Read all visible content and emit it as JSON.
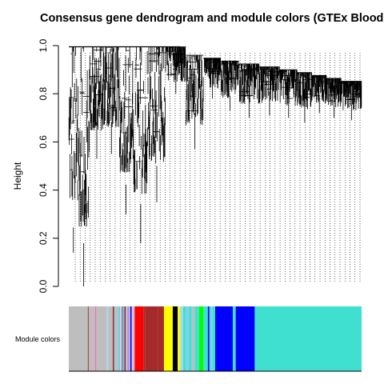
{
  "chart_data": {
    "type": "dendrogram",
    "title": "Consensus gene dendrogram and module colors (GTEx Blood",
    "ylabel": "Height",
    "ylim": [
      0.0,
      1.0
    ],
    "yticks": [
      "0.0",
      "0.2",
      "0.4",
      "0.6",
      "0.8",
      "1.0"
    ],
    "color_bar_label": "Module colors",
    "branches": [
      {
        "from": 0.0,
        "to": 0.03,
        "min_height": 0.14
      },
      {
        "from": 0.03,
        "to": 0.07,
        "min_height": 0.0
      },
      {
        "from": 0.07,
        "to": 0.12,
        "min_height": 0.53
      },
      {
        "from": 0.12,
        "to": 0.17,
        "min_height": 0.55
      },
      {
        "from": 0.17,
        "to": 0.22,
        "min_height": 0.3
      },
      {
        "from": 0.22,
        "to": 0.27,
        "min_height": 0.18
      },
      {
        "from": 0.27,
        "to": 0.33,
        "min_height": 0.35
      },
      {
        "from": 0.33,
        "to": 0.4,
        "min_height": 0.8
      },
      {
        "from": 0.4,
        "to": 0.46,
        "min_height": 0.57
      },
      {
        "from": 0.46,
        "to": 0.52,
        "min_height": 0.78
      },
      {
        "from": 0.52,
        "to": 0.58,
        "min_height": 0.73
      },
      {
        "from": 0.58,
        "to": 0.65,
        "min_height": 0.7
      },
      {
        "from": 0.65,
        "to": 0.72,
        "min_height": 0.71
      },
      {
        "from": 0.72,
        "to": 0.78,
        "min_height": 0.7
      },
      {
        "from": 0.78,
        "to": 0.83,
        "min_height": 0.68
      },
      {
        "from": 0.83,
        "to": 0.88,
        "min_height": 0.72
      },
      {
        "from": 0.88,
        "to": 0.93,
        "min_height": 0.7
      },
      {
        "from": 0.93,
        "to": 1.0,
        "min_height": 0.69
      }
    ],
    "module_colors": [
      {
        "from": 0.0,
        "to": 0.065,
        "color": "#bebebe"
      },
      {
        "from": 0.065,
        "to": 0.068,
        "color": "#a52a2a"
      },
      {
        "from": 0.068,
        "to": 0.09,
        "color": "#bebebe"
      },
      {
        "from": 0.09,
        "to": 0.094,
        "color": "#ff69b4"
      },
      {
        "from": 0.094,
        "to": 0.13,
        "color": "#bebebe"
      },
      {
        "from": 0.13,
        "to": 0.135,
        "color": "#add8e6"
      },
      {
        "from": 0.135,
        "to": 0.15,
        "color": "#bebebe"
      },
      {
        "from": 0.15,
        "to": 0.155,
        "color": "#a52a2a"
      },
      {
        "from": 0.155,
        "to": 0.16,
        "color": "#87ceeb"
      },
      {
        "from": 0.16,
        "to": 0.17,
        "color": "#bebebe"
      },
      {
        "from": 0.17,
        "to": 0.175,
        "color": "#40e0d0"
      },
      {
        "from": 0.175,
        "to": 0.18,
        "color": "#ffc0cb"
      },
      {
        "from": 0.18,
        "to": 0.185,
        "color": "#9370db"
      },
      {
        "from": 0.185,
        "to": 0.19,
        "color": "#40e0d0"
      },
      {
        "from": 0.19,
        "to": 0.195,
        "color": "#a52a2a"
      },
      {
        "from": 0.195,
        "to": 0.2,
        "color": "#add8e6"
      },
      {
        "from": 0.2,
        "to": 0.205,
        "color": "#ff69b4"
      },
      {
        "from": 0.205,
        "to": 0.21,
        "color": "#87ceeb"
      },
      {
        "from": 0.21,
        "to": 0.215,
        "color": "#0000ff"
      },
      {
        "from": 0.215,
        "to": 0.22,
        "color": "#ffc0cb"
      },
      {
        "from": 0.22,
        "to": 0.225,
        "color": "#bebebe"
      },
      {
        "from": 0.225,
        "to": 0.255,
        "color": "#ff0000"
      },
      {
        "from": 0.255,
        "to": 0.26,
        "color": "#a52a2a"
      },
      {
        "from": 0.26,
        "to": 0.305,
        "color": "#a52a2a"
      },
      {
        "from": 0.305,
        "to": 0.325,
        "color": "#a52a2a"
      },
      {
        "from": 0.325,
        "to": 0.355,
        "color": "#ffff00"
      },
      {
        "from": 0.355,
        "to": 0.372,
        "color": "#000000"
      },
      {
        "from": 0.372,
        "to": 0.38,
        "color": "#ffff00"
      },
      {
        "from": 0.38,
        "to": 0.39,
        "color": "#add8e6"
      },
      {
        "from": 0.39,
        "to": 0.4,
        "color": "#40e0d0"
      },
      {
        "from": 0.4,
        "to": 0.41,
        "color": "#87ceeb"
      },
      {
        "from": 0.41,
        "to": 0.42,
        "color": "#40e0d0"
      },
      {
        "from": 0.42,
        "to": 0.43,
        "color": "#bebebe"
      },
      {
        "from": 0.43,
        "to": 0.445,
        "color": "#40e0d0"
      },
      {
        "from": 0.445,
        "to": 0.46,
        "color": "#00ff00"
      },
      {
        "from": 0.46,
        "to": 0.475,
        "color": "#40e0d0"
      },
      {
        "from": 0.475,
        "to": 0.48,
        "color": "#0000ff"
      },
      {
        "from": 0.48,
        "to": 0.485,
        "color": "#40e0d0"
      },
      {
        "from": 0.485,
        "to": 0.49,
        "color": "#87ceeb"
      },
      {
        "from": 0.49,
        "to": 0.5,
        "color": "#40e0d0"
      },
      {
        "from": 0.5,
        "to": 0.56,
        "color": "#0000ff"
      },
      {
        "from": 0.56,
        "to": 0.57,
        "color": "#40e0d0"
      },
      {
        "from": 0.57,
        "to": 0.635,
        "color": "#0000ff"
      },
      {
        "from": 0.635,
        "to": 1.0,
        "color": "#40e0d0"
      }
    ]
  }
}
